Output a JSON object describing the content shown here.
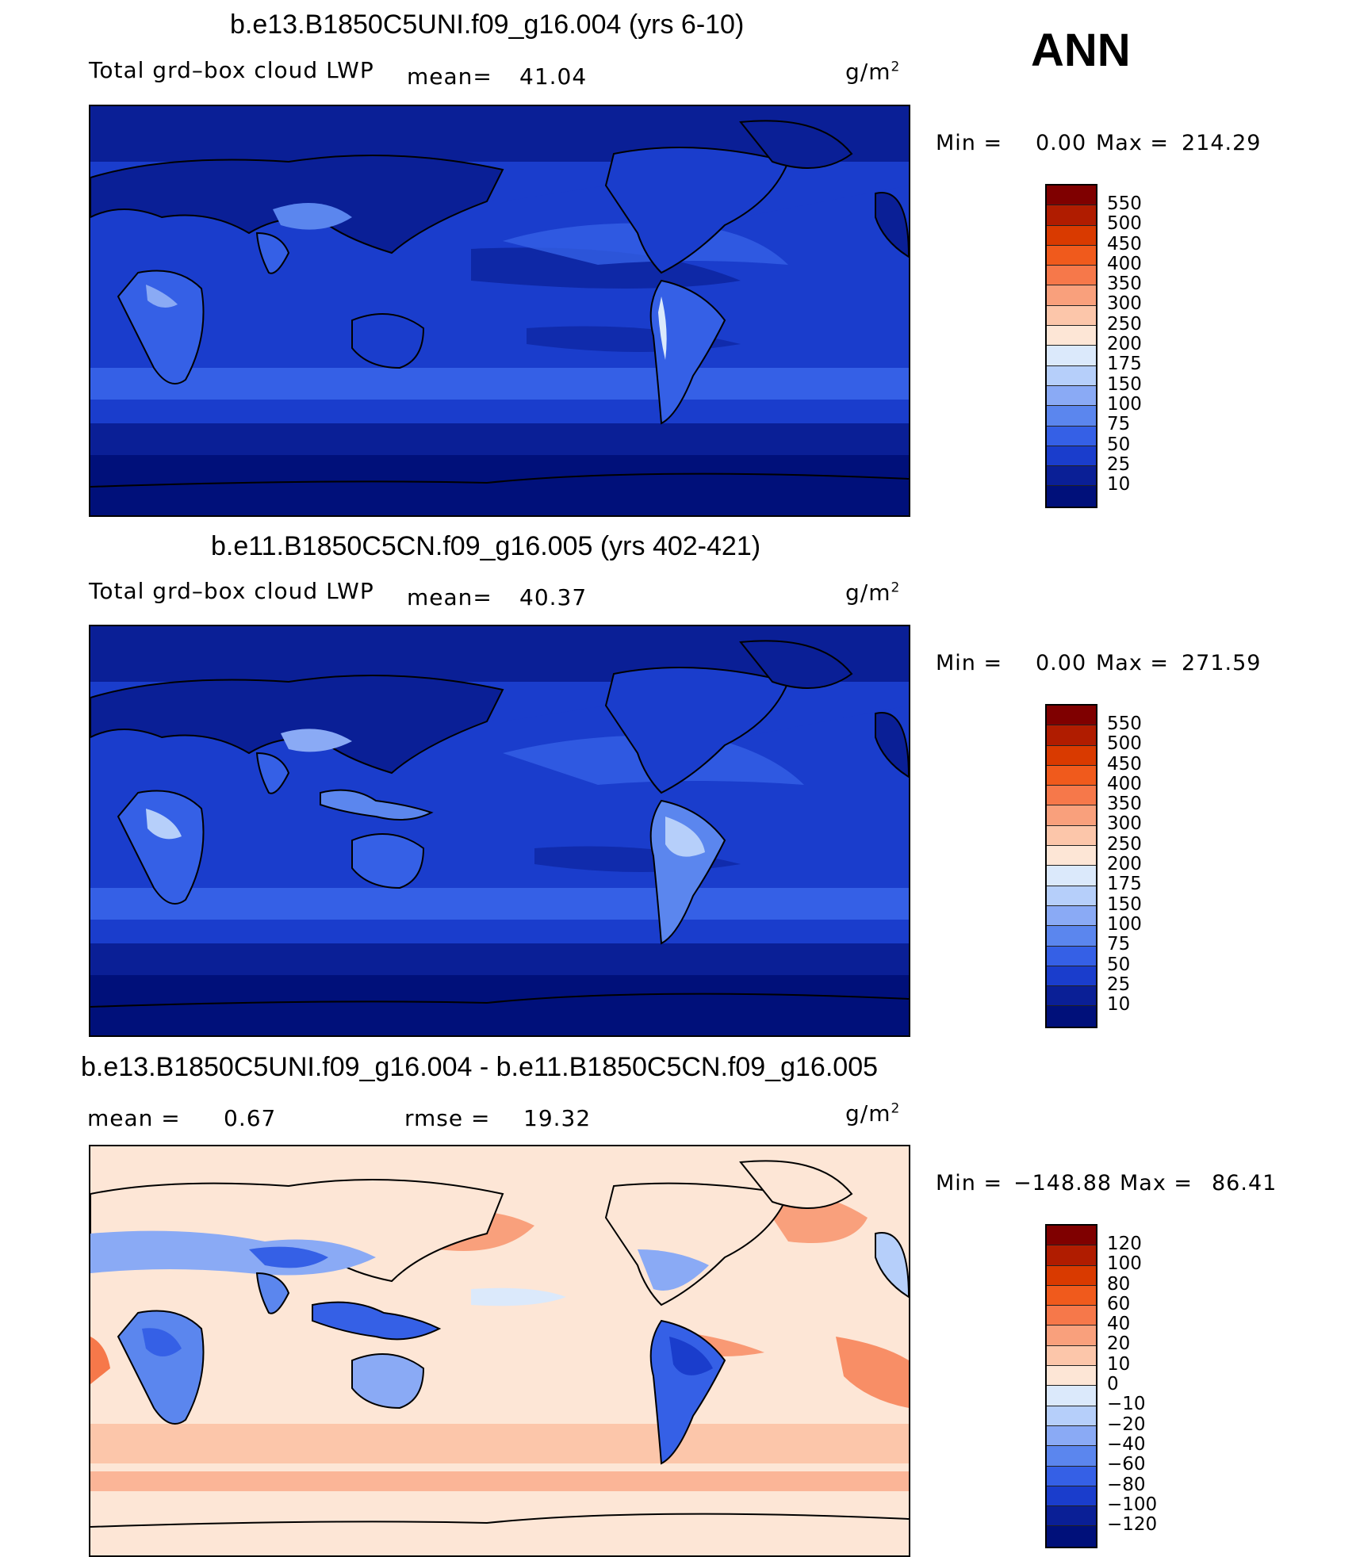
{
  "season": "ANN",
  "panels": [
    {
      "title": "b.e13.B1850C5UNI.f09_g16.004 (yrs 6-10)",
      "variable": "Total grd–box cloud LWP",
      "mean_label": "mean=",
      "mean": "41.04",
      "units": "g/m",
      "units_sup": "2",
      "min_label": "Min =",
      "min": "0.00",
      "max_label": "Max =",
      "max": "214.29",
      "colorbar": [
        "550",
        "500",
        "450",
        "400",
        "350",
        "300",
        "250",
        "200",
        "175",
        "150",
        "100",
        "75",
        "50",
        "25",
        "10"
      ],
      "colors": [
        "#7f0000",
        "#b01c00",
        "#d93a00",
        "#f05a1c",
        "#f6784a",
        "#f9a07c",
        "#fcc6aa",
        "#fde6d6",
        "#dbe9fb",
        "#b6cffa",
        "#8aaaf5",
        "#5b86ee",
        "#3560e6",
        "#1a3dcc",
        "#0a1f96",
        "#00107a"
      ]
    },
    {
      "title": "b.e11.B1850C5CN.f09_g16.005 (yrs 402-421)",
      "variable": "Total grd–box cloud LWP",
      "mean_label": "mean=",
      "mean": "40.37",
      "units": "g/m",
      "units_sup": "2",
      "min_label": "Min =",
      "min": "0.00",
      "max_label": "Max =",
      "max": "271.59",
      "colorbar": [
        "550",
        "500",
        "450",
        "400",
        "350",
        "300",
        "250",
        "200",
        "175",
        "150",
        "100",
        "75",
        "50",
        "25",
        "10"
      ],
      "colors": [
        "#7f0000",
        "#b01c00",
        "#d93a00",
        "#f05a1c",
        "#f6784a",
        "#f9a07c",
        "#fcc6aa",
        "#fde6d6",
        "#dbe9fb",
        "#b6cffa",
        "#8aaaf5",
        "#5b86ee",
        "#3560e6",
        "#1a3dcc",
        "#0a1f96",
        "#00107a"
      ]
    },
    {
      "title": "b.e13.B1850C5UNI.f09_g16.004 - b.e11.B1850C5CN.f09_g16.005",
      "mean_label": "mean =",
      "mean": "0.67",
      "rmse_label": "rmse =",
      "rmse": "19.32",
      "units": "g/m",
      "units_sup": "2",
      "min_label": "Min =",
      "min": "−148.88",
      "max_label": "Max =",
      "max": "86.41",
      "colorbar": [
        "120",
        "100",
        "80",
        "60",
        "40",
        "20",
        "10",
        "0",
        "−10",
        "−20",
        "−40",
        "−60",
        "−80",
        "−100",
        "−120"
      ],
      "colors": [
        "#7f0000",
        "#b01c00",
        "#d93a00",
        "#f05a1c",
        "#f6784a",
        "#f9a07c",
        "#fcc6aa",
        "#fde6d6",
        "#dbe9fb",
        "#b6cffa",
        "#8aaaf5",
        "#5b86ee",
        "#3560e6",
        "#1a3dcc",
        "#0a1f96",
        "#00107a"
      ]
    }
  ]
}
